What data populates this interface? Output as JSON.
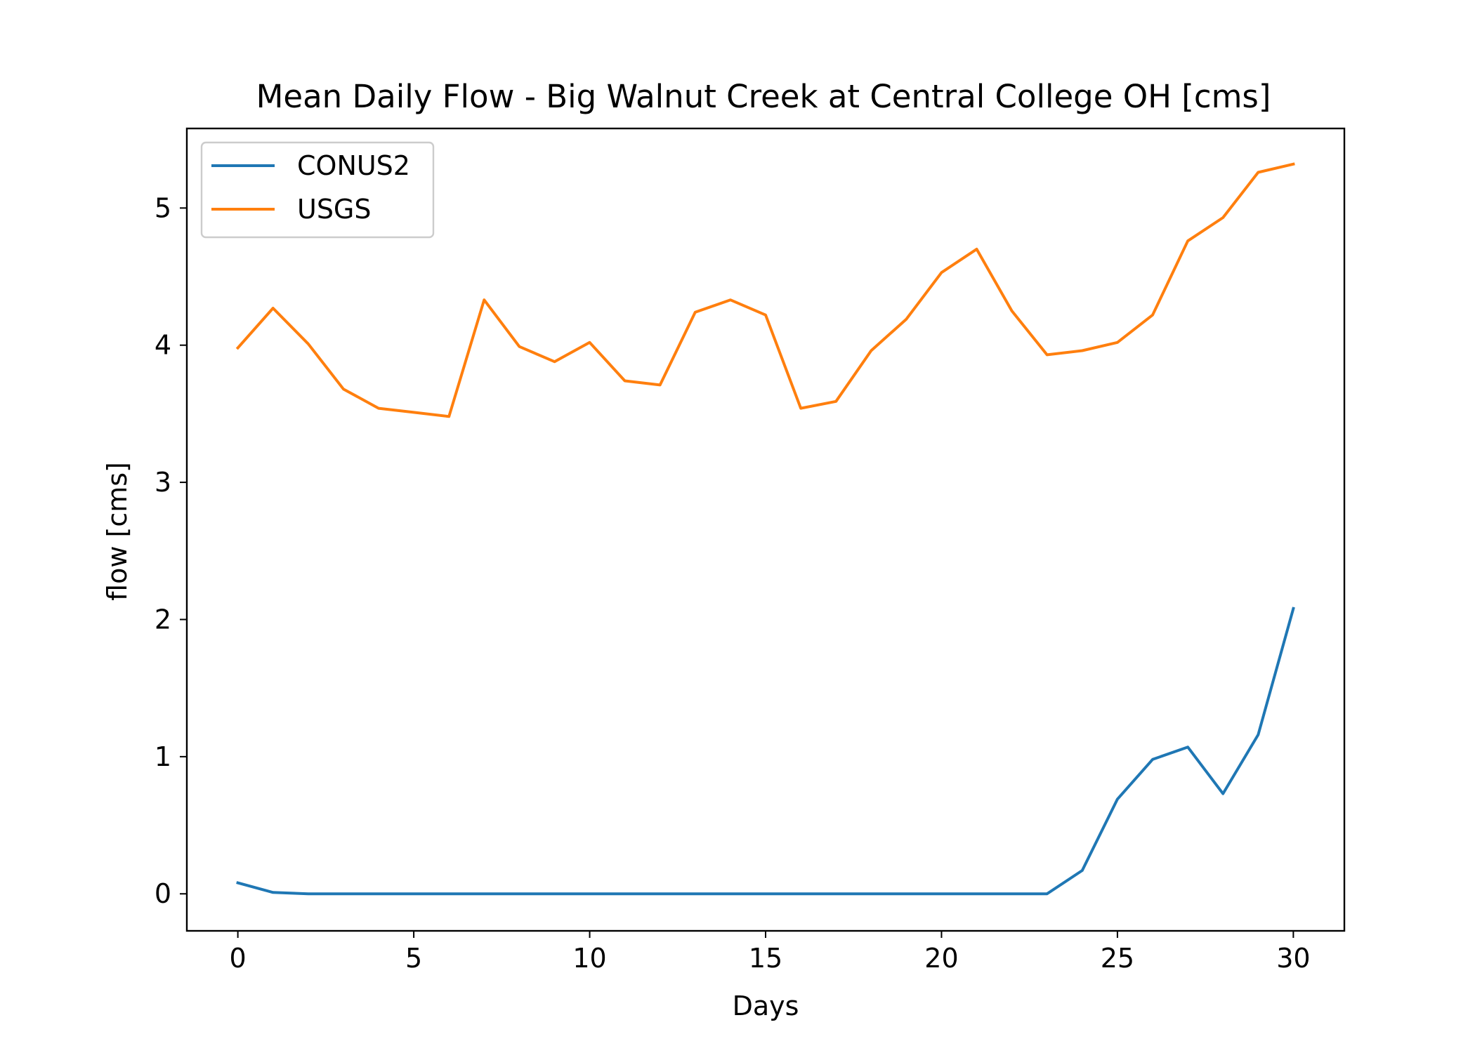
{
  "chart_data": {
    "type": "line",
    "title": "Mean Daily Flow - Big Walnut Creek at Central College OH [cms]",
    "xlabel": "Days",
    "ylabel": "flow [cms]",
    "xlim": [
      -1.45,
      31.45
    ],
    "ylim": [
      -0.27,
      5.58
    ],
    "xticks": [
      0,
      5,
      10,
      15,
      20,
      25,
      30
    ],
    "yticks": [
      0,
      1,
      2,
      3,
      4,
      5
    ],
    "grid": false,
    "legend_position": "upper-left",
    "x": [
      0,
      1,
      2,
      3,
      4,
      5,
      6,
      7,
      8,
      9,
      10,
      11,
      12,
      13,
      14,
      15,
      16,
      17,
      18,
      19,
      20,
      21,
      22,
      23,
      24,
      25,
      26,
      27,
      28,
      29,
      30
    ],
    "series": [
      {
        "name": "CONUS2",
        "color": "#1f77b4",
        "values": [
          0.08,
          0.01,
          0.0,
          0.0,
          0.0,
          0.0,
          0.0,
          0.0,
          0.0,
          0.0,
          0.0,
          0.0,
          0.0,
          0.0,
          0.0,
          0.0,
          0.0,
          0.0,
          0.0,
          0.0,
          0.0,
          0.0,
          0.0,
          0.0,
          0.17,
          0.69,
          0.98,
          1.07,
          0.73,
          1.16,
          2.08
        ]
      },
      {
        "name": "USGS",
        "color": "#ff7f0e",
        "values": [
          3.98,
          4.27,
          4.01,
          3.68,
          3.54,
          3.51,
          3.48,
          4.33,
          3.99,
          3.88,
          4.02,
          3.74,
          3.71,
          4.24,
          4.33,
          4.22,
          3.54,
          3.59,
          3.96,
          4.19,
          4.53,
          4.7,
          4.25,
          3.93,
          3.96,
          4.02,
          4.22,
          4.76,
          4.93,
          5.26,
          5.32
        ]
      }
    ]
  }
}
